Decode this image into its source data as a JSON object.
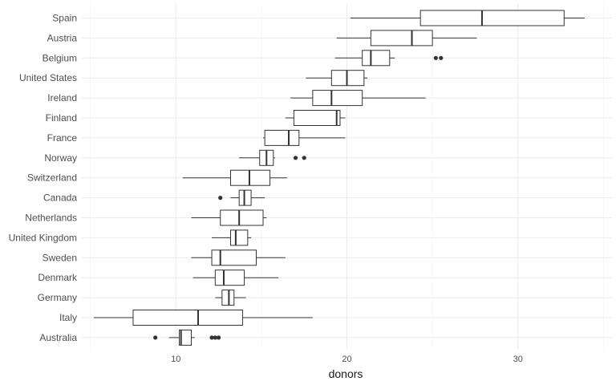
{
  "chart_data": {
    "type": "boxplot",
    "orientation": "horizontal",
    "xlabel": "donors",
    "ylabel": "",
    "title": "",
    "xlim": [
      4.5,
      35.5
    ],
    "xticks": [
      10,
      20,
      30
    ],
    "grid": true,
    "colors": {
      "box_fill": "#ffffff",
      "box_stroke": "#333333",
      "outlier": "#333333",
      "grid_major": "#ebebeb",
      "grid_minor": "#f5f5f5"
    },
    "categories": [
      "Spain",
      "Austria",
      "Belgium",
      "United States",
      "Ireland",
      "Finland",
      "France",
      "Norway",
      "Switzerland",
      "Canada",
      "Netherlands",
      "United Kingdom",
      "Sweden",
      "Denmark",
      "Germany",
      "Italy",
      "Australia"
    ],
    "boxes": [
      {
        "category": "Spain",
        "whisker_low": 20.2,
        "q1": 24.3,
        "median": 27.9,
        "q3": 32.7,
        "whisker_high": 33.9,
        "outliers": []
      },
      {
        "category": "Austria",
        "whisker_low": 19.4,
        "q1": 21.4,
        "median": 23.8,
        "q3": 25.0,
        "whisker_high": 27.6,
        "outliers": []
      },
      {
        "category": "Belgium",
        "whisker_low": 19.3,
        "q1": 20.9,
        "median": 21.4,
        "q3": 22.5,
        "whisker_high": 22.8,
        "outliers": [
          25.2,
          25.5
        ]
      },
      {
        "category": "United States",
        "whisker_low": 17.6,
        "q1": 19.1,
        "median": 20.0,
        "q3": 21.0,
        "whisker_high": 21.2,
        "outliers": []
      },
      {
        "category": "Ireland",
        "whisker_low": 16.7,
        "q1": 18.0,
        "median": 19.1,
        "q3": 20.9,
        "whisker_high": 24.6,
        "outliers": []
      },
      {
        "category": "Finland",
        "whisker_low": 16.4,
        "q1": 16.9,
        "median": 19.4,
        "q3": 19.6,
        "whisker_high": 19.9,
        "outliers": []
      },
      {
        "category": "France",
        "whisker_low": 15.1,
        "q1": 15.2,
        "median": 16.6,
        "q3": 17.2,
        "whisker_high": 19.9,
        "outliers": []
      },
      {
        "category": "Norway",
        "whisker_low": 13.7,
        "q1": 14.9,
        "median": 15.3,
        "q3": 15.7,
        "whisker_high": 15.8,
        "outliers": [
          17.0,
          17.5
        ]
      },
      {
        "category": "Switzerland",
        "whisker_low": 10.4,
        "q1": 13.2,
        "median": 14.3,
        "q3": 15.5,
        "whisker_high": 16.5,
        "outliers": []
      },
      {
        "category": "Canada",
        "whisker_low": 13.2,
        "q1": 13.7,
        "median": 14.0,
        "q3": 14.4,
        "whisker_high": 15.2,
        "outliers": [
          12.6
        ]
      },
      {
        "category": "Netherlands",
        "whisker_low": 10.9,
        "q1": 12.6,
        "median": 13.7,
        "q3": 15.1,
        "whisker_high": 15.3,
        "outliers": []
      },
      {
        "category": "United Kingdom",
        "whisker_low": 12.1,
        "q1": 13.2,
        "median": 13.5,
        "q3": 14.2,
        "whisker_high": 14.4,
        "outliers": []
      },
      {
        "category": "Sweden",
        "whisker_low": 10.9,
        "q1": 12.1,
        "median": 12.6,
        "q3": 14.7,
        "whisker_high": 16.4,
        "outliers": []
      },
      {
        "category": "Denmark",
        "whisker_low": 11.0,
        "q1": 12.3,
        "median": 12.8,
        "q3": 14.0,
        "whisker_high": 16.0,
        "outliers": []
      },
      {
        "category": "Germany",
        "whisker_low": 12.3,
        "q1": 12.7,
        "median": 13.1,
        "q3": 13.4,
        "whisker_high": 14.1,
        "outliers": []
      },
      {
        "category": "Italy",
        "whisker_low": 5.2,
        "q1": 7.5,
        "median": 11.3,
        "q3": 13.9,
        "whisker_high": 18.0,
        "outliers": []
      },
      {
        "category": "Australia",
        "whisker_low": 9.6,
        "q1": 10.2,
        "median": 10.3,
        "q3": 10.9,
        "whisker_high": 11.1,
        "outliers": [
          8.8,
          12.1,
          12.3,
          12.5
        ]
      }
    ]
  }
}
